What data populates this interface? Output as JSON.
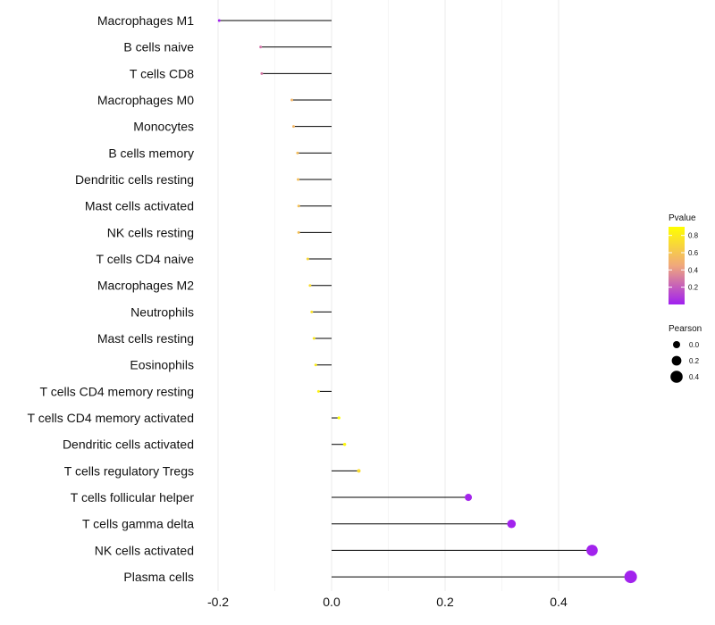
{
  "chart_data": {
    "type": "lollipop",
    "categories": [
      "Macrophages M1",
      "B cells naive",
      "T cells CD8",
      "Macrophages M0",
      "Monocytes",
      "B cells memory",
      "Dendritic cells resting",
      "Mast cells activated",
      "NK cells resting",
      "T cells CD4 naive",
      "Macrophages M2",
      "Neutrophils",
      "Mast cells resting",
      "Eosinophils",
      "T cells CD4 memory resting",
      "T cells CD4 memory activated",
      "Dendritic cells activated",
      "T cells regulatory  Tregs ",
      "T cells follicular helper",
      "T cells gamma delta",
      "NK cells activated",
      "Plasma cells"
    ],
    "values": [
      -0.198,
      -0.125,
      -0.123,
      -0.07,
      -0.067,
      -0.06,
      -0.059,
      -0.058,
      -0.058,
      -0.042,
      -0.038,
      -0.035,
      -0.031,
      -0.028,
      -0.023,
      0.013,
      0.023,
      0.048,
      0.241,
      0.317,
      0.459,
      0.527
    ],
    "pvalues": [
      0.01,
      0.28,
      0.29,
      0.52,
      0.53,
      0.56,
      0.57,
      0.58,
      0.58,
      0.7,
      0.72,
      0.75,
      0.78,
      0.8,
      0.83,
      0.95,
      0.86,
      0.72,
      0.02,
      0.01,
      0.01,
      0.01
    ],
    "ticks": [
      -0.2,
      0.0,
      0.2,
      0.4
    ],
    "xlim": [
      -0.2,
      0.53
    ],
    "title": "",
    "xlabel": "",
    "ylabel": "",
    "grid": true,
    "legend_position": "right",
    "legend": {
      "color": {
        "title": "Pvalue",
        "ticks": [
          0.8,
          0.6,
          0.4,
          0.2
        ],
        "low_color": "#A020F0",
        "mid_color": "#F0A87C",
        "high_color": "#FFFF00"
      },
      "size": {
        "title": "Pearson",
        "entries": [
          0.0,
          0.2,
          0.4
        ]
      }
    },
    "colors": {
      "segment": "#000000",
      "grid": "#EBEBEB"
    }
  }
}
